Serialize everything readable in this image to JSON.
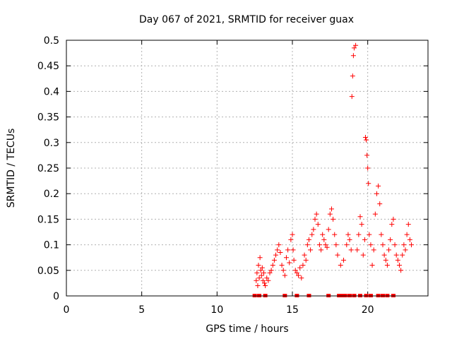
{
  "chart_data": {
    "type": "scatter",
    "title": "Day 067 of 2021, SRMTID for receiver guax",
    "xlabel": "GPS time / hours",
    "ylabel": "SRMTID / TECUs",
    "xlim": [
      0,
      24
    ],
    "ylim": [
      0,
      0.5
    ],
    "xticks": [
      0,
      5,
      10,
      15,
      20
    ],
    "yticks": [
      0,
      0.05,
      0.1,
      0.15,
      0.2,
      0.25,
      0.3,
      0.35,
      0.4,
      0.45,
      0.5
    ],
    "grid": true,
    "marker": "+",
    "color": "#ff0000",
    "series": [
      {
        "name": "SRMTID",
        "x": [
          12.6,
          12.65,
          12.7,
          12.75,
          12.8,
          12.85,
          12.9,
          12.95,
          13.0,
          13.05,
          13.1,
          13.15,
          13.2,
          13.3,
          13.4,
          13.5,
          13.6,
          13.7,
          13.8,
          13.9,
          14.0,
          14.1,
          14.2,
          14.3,
          14.4,
          14.5,
          14.6,
          14.7,
          14.8,
          14.9,
          15.0,
          15.05,
          15.1,
          15.2,
          15.3,
          15.4,
          15.5,
          15.6,
          15.7,
          15.8,
          15.9,
          16.0,
          16.1,
          16.2,
          16.3,
          16.4,
          16.5,
          16.6,
          16.7,
          16.8,
          16.9,
          17.0,
          17.1,
          17.2,
          17.3,
          17.4,
          17.5,
          17.6,
          17.7,
          17.8,
          17.9,
          18.0,
          18.2,
          18.4,
          18.6,
          18.7,
          18.8,
          18.9,
          18.95,
          19.0,
          19.05,
          19.1,
          19.2,
          19.3,
          19.4,
          19.5,
          19.6,
          19.7,
          19.8,
          19.85,
          19.9,
          19.95,
          20.0,
          20.05,
          20.1,
          20.2,
          20.3,
          20.4,
          20.5,
          20.6,
          20.7,
          20.8,
          20.9,
          21.0,
          21.1,
          21.2,
          21.3,
          21.4,
          21.5,
          21.6,
          21.7,
          21.8,
          21.9,
          22.0,
          22.1,
          22.2,
          22.3,
          22.4,
          22.5,
          22.6,
          22.7,
          22.8,
          22.9
        ],
        "y": [
          0.03,
          0.045,
          0.02,
          0.06,
          0.035,
          0.075,
          0.05,
          0.04,
          0.055,
          0.03,
          0.045,
          0.025,
          0.02,
          0.035,
          0.03,
          0.045,
          0.05,
          0.06,
          0.07,
          0.08,
          0.09,
          0.1,
          0.085,
          0.06,
          0.05,
          0.04,
          0.075,
          0.09,
          0.065,
          0.11,
          0.12,
          0.09,
          0.07,
          0.05,
          0.045,
          0.04,
          0.055,
          0.035,
          0.06,
          0.08,
          0.07,
          0.1,
          0.11,
          0.09,
          0.12,
          0.13,
          0.15,
          0.16,
          0.14,
          0.1,
          0.09,
          0.12,
          0.11,
          0.1,
          0.095,
          0.13,
          0.16,
          0.17,
          0.15,
          0.12,
          0.1,
          0.08,
          0.06,
          0.07,
          0.1,
          0.12,
          0.11,
          0.09,
          0.39,
          0.43,
          0.47,
          0.485,
          0.49,
          0.09,
          0.12,
          0.155,
          0.14,
          0.08,
          0.11,
          0.31,
          0.305,
          0.275,
          0.25,
          0.22,
          0.12,
          0.1,
          0.06,
          0.09,
          0.16,
          0.2,
          0.215,
          0.18,
          0.12,
          0.1,
          0.08,
          0.07,
          0.06,
          0.09,
          0.11,
          0.14,
          0.15,
          0.1,
          0.08,
          0.07,
          0.06,
          0.05,
          0.08,
          0.1,
          0.09,
          0.12,
          0.14,
          0.11,
          0.1
        ]
      }
    ],
    "baseline_marks_x": [
      12.5,
      12.8,
      13.2,
      14.5,
      15.3,
      16.1,
      17.4,
      18.1,
      18.3,
      18.5,
      18.8,
      19.1,
      19.5,
      19.9,
      20.2,
      20.7,
      21.0,
      21.3,
      21.7
    ]
  }
}
